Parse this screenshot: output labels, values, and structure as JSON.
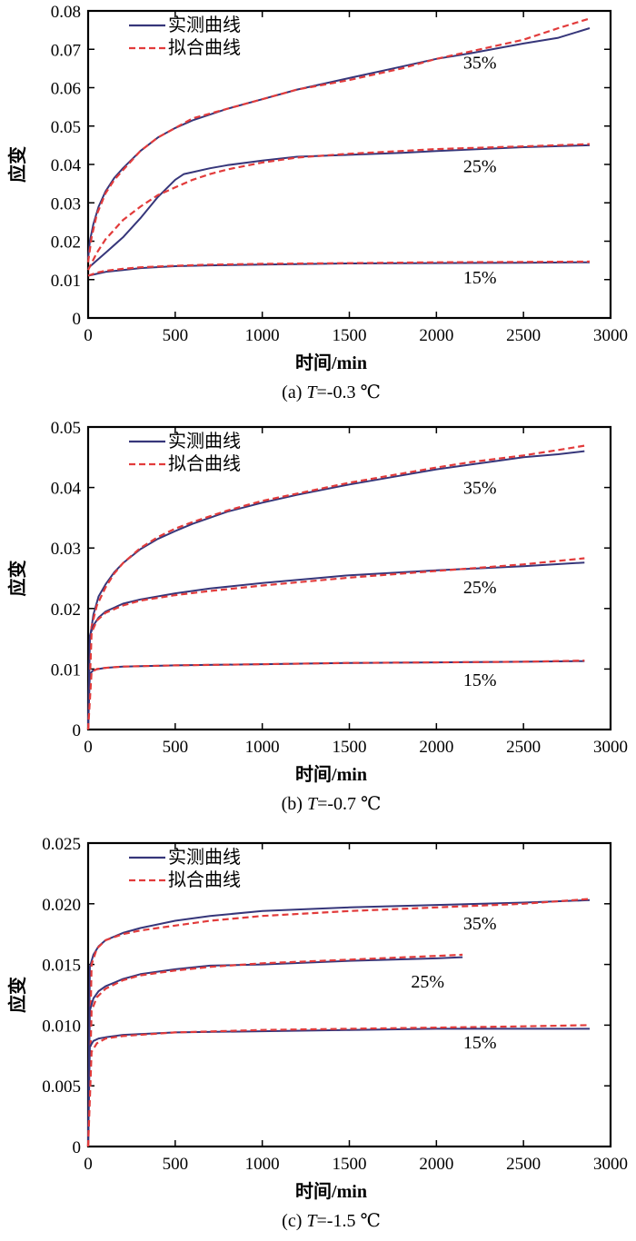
{
  "colors": {
    "measured": "#36367a",
    "fitted": "#e23b3b",
    "axis": "#000000"
  },
  "chart_data": [
    {
      "type": "line",
      "caption": {
        "prefix": "(a) ",
        "var": "T",
        "rest": "=-0.3 ℃"
      },
      "xlabel": "时间/min",
      "ylabel": "应变",
      "xlim": [
        0,
        3000
      ],
      "ylim": [
        0,
        0.08
      ],
      "xticks": [
        0,
        500,
        1000,
        1500,
        2000,
        2500,
        3000
      ],
      "yticks": [
        0,
        0.01,
        0.02,
        0.03,
        0.04,
        0.05,
        0.06,
        0.07,
        0.08
      ],
      "ytick_labels": [
        "0",
        "0.01",
        "0.02",
        "0.03",
        "0.04",
        "0.05",
        "0.06",
        "0.07",
        "0.08"
      ],
      "legend": {
        "position": "top-left",
        "entries": [
          {
            "label": "实测曲线",
            "style": "solid"
          },
          {
            "label": "拟合曲线",
            "style": "dashed"
          }
        ]
      },
      "grid": false,
      "annotations": [
        {
          "text": "35%",
          "x": 2250,
          "y": 0.065
        },
        {
          "text": "25%",
          "x": 2250,
          "y": 0.038
        },
        {
          "text": "15%",
          "x": 2250,
          "y": 0.009
        }
      ],
      "series": [
        {
          "kind": "measured",
          "group": "35%",
          "x": [
            0,
            10,
            30,
            60,
            100,
            150,
            200,
            300,
            400,
            500,
            600,
            800,
            1000,
            1200,
            1500,
            1800,
            2000,
            2200,
            2500,
            2700,
            2880
          ],
          "y": [
            0.0155,
            0.02,
            0.0245,
            0.029,
            0.033,
            0.0365,
            0.039,
            0.0435,
            0.047,
            0.0495,
            0.0515,
            0.0545,
            0.057,
            0.0595,
            0.0625,
            0.0655,
            0.0675,
            0.069,
            0.0715,
            0.073,
            0.0755
          ]
        },
        {
          "kind": "fitted",
          "group": "35%",
          "x": [
            0,
            20,
            50,
            100,
            150,
            200,
            300,
            400,
            500,
            600,
            800,
            1000,
            1200,
            1500,
            1800,
            2000,
            2200,
            2500,
            2700,
            2880
          ],
          "y": [
            0.0145,
            0.021,
            0.027,
            0.0325,
            0.036,
            0.0385,
            0.0435,
            0.047,
            0.0495,
            0.052,
            0.0545,
            0.057,
            0.0595,
            0.062,
            0.065,
            0.0675,
            0.0695,
            0.0725,
            0.0755,
            0.078
          ]
        },
        {
          "kind": "measured",
          "group": "25%",
          "x": [
            0,
            50,
            100,
            200,
            300,
            400,
            500,
            550,
            600,
            700,
            800,
            1000,
            1200,
            1500,
            1800,
            2000,
            2500,
            2880
          ],
          "y": [
            0.013,
            0.015,
            0.017,
            0.021,
            0.026,
            0.0315,
            0.036,
            0.0375,
            0.038,
            0.039,
            0.0398,
            0.041,
            0.042,
            0.0425,
            0.043,
            0.0435,
            0.0445,
            0.045
          ]
        },
        {
          "kind": "fitted",
          "group": "25%",
          "x": [
            0,
            50,
            100,
            200,
            300,
            400,
            500,
            600,
            700,
            800,
            1000,
            1200,
            1500,
            1800,
            2000,
            2500,
            2880
          ],
          "y": [
            0.0125,
            0.017,
            0.0205,
            0.0255,
            0.029,
            0.032,
            0.034,
            0.036,
            0.0375,
            0.0387,
            0.0405,
            0.0418,
            0.0428,
            0.0435,
            0.044,
            0.0447,
            0.0453
          ]
        },
        {
          "kind": "measured",
          "group": "15%",
          "x": [
            0,
            50,
            100,
            200,
            300,
            500,
            700,
            1000,
            1500,
            2000,
            2500,
            2880
          ],
          "y": [
            0.011,
            0.0115,
            0.012,
            0.0125,
            0.013,
            0.0135,
            0.0137,
            0.0139,
            0.0142,
            0.0143,
            0.0144,
            0.0145
          ]
        },
        {
          "kind": "fitted",
          "group": "15%",
          "x": [
            0,
            50,
            100,
            200,
            300,
            500,
            700,
            1000,
            1500,
            2000,
            2500,
            2880
          ],
          "y": [
            0.011,
            0.0118,
            0.0123,
            0.0128,
            0.0132,
            0.0136,
            0.0139,
            0.0141,
            0.0143,
            0.0145,
            0.0146,
            0.0147
          ]
        }
      ]
    },
    {
      "type": "line",
      "caption": {
        "prefix": "(b) ",
        "var": "T",
        "rest": "=-0.7 ℃"
      },
      "xlabel": "时间/min",
      "ylabel": "应变",
      "xlim": [
        0,
        3000
      ],
      "ylim": [
        0,
        0.05
      ],
      "xticks": [
        0,
        500,
        1000,
        1500,
        2000,
        2500,
        3000
      ],
      "yticks": [
        0,
        0.01,
        0.02,
        0.03,
        0.04,
        0.05
      ],
      "ytick_labels": [
        "0",
        "0.01",
        "0.02",
        "0.03",
        "0.04",
        "0.05"
      ],
      "legend": {
        "position": "top-left",
        "entries": [
          {
            "label": "实测曲线",
            "style": "solid"
          },
          {
            "label": "拟合曲线",
            "style": "dashed"
          }
        ]
      },
      "grid": false,
      "annotations": [
        {
          "text": "35%",
          "x": 2250,
          "y": 0.039
        },
        {
          "text": "25%",
          "x": 2250,
          "y": 0.0225
        },
        {
          "text": "15%",
          "x": 2250,
          "y": 0.0072
        }
      ],
      "series": [
        {
          "kind": "measured",
          "group": "35%",
          "x": [
            0,
            10,
            30,
            60,
            100,
            150,
            200,
            300,
            400,
            500,
            600,
            800,
            1000,
            1200,
            1500,
            1800,
            2000,
            2200,
            2500,
            2700,
            2850
          ],
          "y": [
            0.0,
            0.015,
            0.019,
            0.022,
            0.024,
            0.026,
            0.0275,
            0.0298,
            0.0315,
            0.0328,
            0.034,
            0.036,
            0.0375,
            0.0388,
            0.0405,
            0.042,
            0.043,
            0.0438,
            0.045,
            0.0455,
            0.046
          ]
        },
        {
          "kind": "fitted",
          "group": "35%",
          "x": [
            0,
            20,
            50,
            100,
            150,
            200,
            300,
            400,
            500,
            600,
            800,
            1000,
            1200,
            1500,
            1800,
            2000,
            2200,
            2500,
            2700,
            2850
          ],
          "y": [
            0.0,
            0.017,
            0.0205,
            0.0235,
            0.0258,
            0.0275,
            0.03,
            0.0318,
            0.0332,
            0.0343,
            0.0362,
            0.0378,
            0.039,
            0.0408,
            0.0423,
            0.0433,
            0.0442,
            0.0453,
            0.0462,
            0.0469
          ]
        },
        {
          "kind": "measured",
          "group": "25%",
          "x": [
            0,
            10,
            30,
            60,
            100,
            200,
            300,
            500,
            700,
            1000,
            1500,
            2000,
            2500,
            2850
          ],
          "y": [
            0.0,
            0.0155,
            0.0172,
            0.0185,
            0.0195,
            0.0208,
            0.0215,
            0.0225,
            0.0233,
            0.0242,
            0.0255,
            0.0263,
            0.027,
            0.0276
          ]
        },
        {
          "kind": "fitted",
          "group": "25%",
          "x": [
            0,
            20,
            50,
            100,
            200,
            300,
            500,
            700,
            1000,
            1500,
            2000,
            2500,
            2850
          ],
          "y": [
            0.0,
            0.016,
            0.018,
            0.0193,
            0.0205,
            0.0213,
            0.0222,
            0.0229,
            0.0238,
            0.0251,
            0.0262,
            0.0273,
            0.0283
          ]
        },
        {
          "kind": "measured",
          "group": "15%",
          "x": [
            0,
            10,
            30,
            60,
            100,
            200,
            500,
            1000,
            1500,
            2000,
            2500,
            2850
          ],
          "y": [
            0.0,
            0.0092,
            0.0098,
            0.01,
            0.0102,
            0.0104,
            0.0106,
            0.0108,
            0.011,
            0.0111,
            0.0112,
            0.0113
          ]
        },
        {
          "kind": "fitted",
          "group": "15%",
          "x": [
            0,
            20,
            50,
            100,
            200,
            500,
            1000,
            1500,
            2000,
            2500,
            2850
          ],
          "y": [
            0.0,
            0.0095,
            0.01,
            0.0102,
            0.0104,
            0.0106,
            0.0108,
            0.011,
            0.0111,
            0.0112,
            0.0114
          ]
        }
      ]
    },
    {
      "type": "line",
      "caption": {
        "prefix": "(c) ",
        "var": "T",
        "rest": "=-1.5 ℃"
      },
      "xlabel": "时间/min",
      "ylabel": "应变",
      "xlim": [
        0,
        3000
      ],
      "ylim": [
        0,
        0.025
      ],
      "xticks": [
        0,
        500,
        1000,
        1500,
        2000,
        2500,
        3000
      ],
      "yticks": [
        0,
        0.005,
        0.01,
        0.015,
        0.02,
        0.025
      ],
      "ytick_labels": [
        "0",
        "0.005",
        "0.010",
        "0.015",
        "0.020",
        "0.025"
      ],
      "legend": {
        "position": "top-left",
        "entries": [
          {
            "label": "实测曲线",
            "style": "solid"
          },
          {
            "label": "拟合曲线",
            "style": "dashed"
          }
        ]
      },
      "grid": false,
      "annotations": [
        {
          "text": "35%",
          "x": 2250,
          "y": 0.0179
        },
        {
          "text": "25%",
          "x": 1950,
          "y": 0.0131
        },
        {
          "text": "15%",
          "x": 2250,
          "y": 0.0081
        }
      ],
      "series": [
        {
          "kind": "measured",
          "group": "35%",
          "x": [
            0,
            10,
            30,
            60,
            100,
            200,
            300,
            500,
            700,
            1000,
            1500,
            2000,
            2500,
            2880
          ],
          "y": [
            0.0,
            0.0148,
            0.0158,
            0.0165,
            0.017,
            0.0176,
            0.018,
            0.0186,
            0.019,
            0.0194,
            0.0197,
            0.0199,
            0.0201,
            0.0203
          ]
        },
        {
          "kind": "fitted",
          "group": "35%",
          "x": [
            0,
            20,
            50,
            100,
            200,
            300,
            500,
            700,
            1000,
            1500,
            2000,
            2500,
            2880
          ],
          "y": [
            0.0,
            0.015,
            0.0163,
            0.017,
            0.0175,
            0.0178,
            0.0182,
            0.0186,
            0.019,
            0.0194,
            0.0197,
            0.02,
            0.0204
          ]
        },
        {
          "kind": "measured",
          "group": "25%",
          "x": [
            0,
            10,
            30,
            60,
            100,
            200,
            300,
            500,
            700,
            1000,
            1500,
            2000,
            2150
          ],
          "y": [
            0.0,
            0.0112,
            0.0122,
            0.0128,
            0.0132,
            0.0138,
            0.0142,
            0.0146,
            0.0149,
            0.015,
            0.0153,
            0.0155,
            0.0156
          ]
        },
        {
          "kind": "fitted",
          "group": "25%",
          "x": [
            0,
            20,
            50,
            100,
            200,
            300,
            500,
            700,
            1000,
            1500,
            2000,
            2150
          ],
          "y": [
            0.0,
            0.0112,
            0.0123,
            0.013,
            0.0137,
            0.0141,
            0.0145,
            0.0148,
            0.0151,
            0.0154,
            0.0157,
            0.0158
          ]
        },
        {
          "kind": "measured",
          "group": "15%",
          "x": [
            0,
            10,
            30,
            60,
            100,
            200,
            500,
            1000,
            1500,
            2000,
            2500,
            2880
          ],
          "y": [
            0.0,
            0.0082,
            0.0087,
            0.0089,
            0.009,
            0.0092,
            0.0094,
            0.0095,
            0.0096,
            0.0097,
            0.0097,
            0.0097
          ]
        },
        {
          "kind": "fitted",
          "group": "15%",
          "x": [
            0,
            20,
            50,
            100,
            200,
            500,
            1000,
            1500,
            2000,
            2500,
            2880
          ],
          "y": [
            0.0,
            0.0078,
            0.0085,
            0.0089,
            0.0091,
            0.0094,
            0.0096,
            0.0097,
            0.0098,
            0.0099,
            0.01
          ]
        }
      ]
    }
  ]
}
